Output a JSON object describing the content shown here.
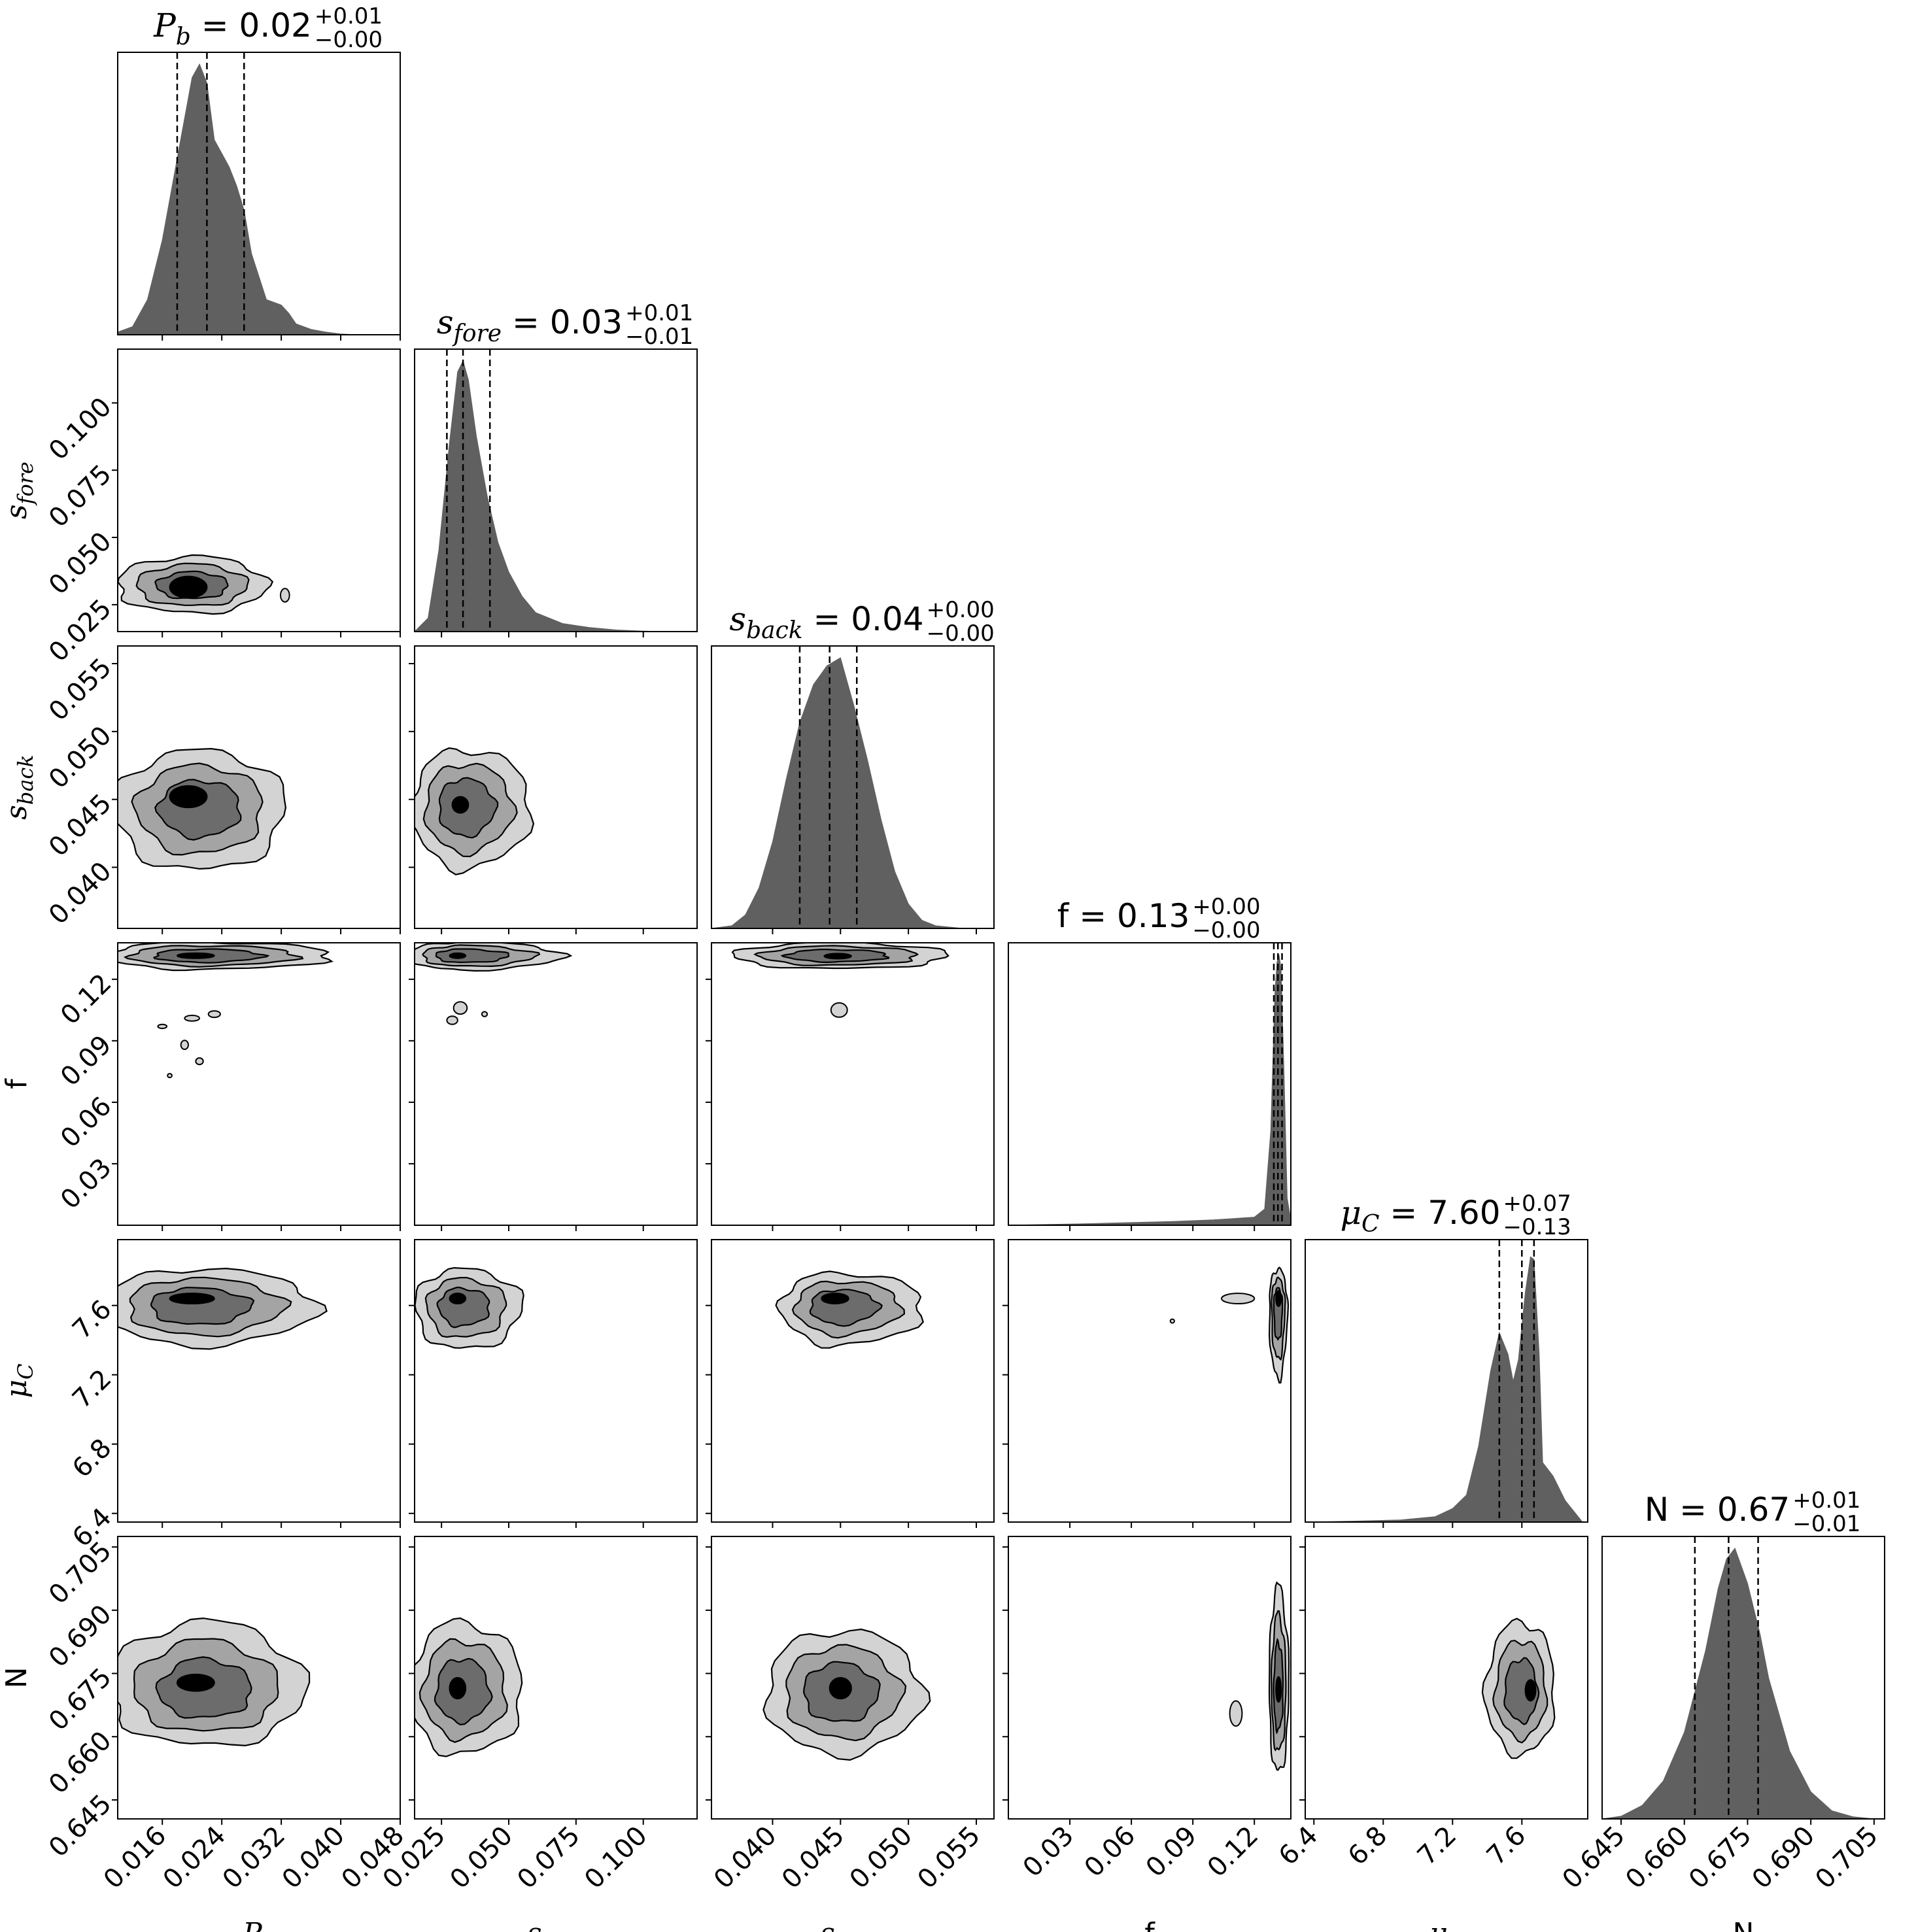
{
  "chart_data": {
    "type": "corner",
    "contour_fills": [
      "#d3d3d3",
      "#a4a4a4",
      "#6c6c6c",
      "#000000"
    ],
    "histogram_fill": "#606060",
    "parameters": [
      {
        "key": "P_b",
        "label_sym": "P",
        "label_sub": "b",
        "title_sym": "P",
        "title_sub": "b",
        "title_value": "0.02",
        "title_plus": "+0.01",
        "title_minus": "−0.00",
        "median": 0.022,
        "q16": 0.018,
        "q84": 0.027,
        "range": [
          0.01,
          0.048
        ],
        "ticks": [
          "0.016",
          "0.024",
          "0.032",
          "0.040",
          "0.048"
        ],
        "tick_values": [
          0.016,
          0.024,
          0.032,
          0.04,
          0.048
        ]
      },
      {
        "key": "s_fore",
        "label_sym": "s",
        "label_sub": "fore",
        "title_sym": "s",
        "title_sub": "fore",
        "title_value": "0.03",
        "title_plus": "+0.01",
        "title_minus": "−0.01",
        "median": 0.033,
        "q16": 0.027,
        "q84": 0.043,
        "range": [
          0.015,
          0.12
        ],
        "ticks": [
          "0.025",
          "0.050",
          "0.075",
          "0.100"
        ],
        "tick_values": [
          0.025,
          0.05,
          0.075,
          0.1
        ]
      },
      {
        "key": "s_back",
        "label_sym": "s",
        "label_sub": "back",
        "title_sym": "s",
        "title_sub": "back",
        "title_value": "0.04",
        "title_plus": "+0.00",
        "title_minus": "−0.00",
        "median": 0.0442,
        "q16": 0.042,
        "q84": 0.0462,
        "range": [
          0.0355,
          0.0563
        ],
        "ticks": [
          "0.040",
          "0.045",
          "0.050",
          "0.055"
        ],
        "tick_values": [
          0.04,
          0.045,
          0.05,
          0.055
        ]
      },
      {
        "key": "f",
        "label_sym": "f",
        "label_sub": "",
        "title_sym": "f",
        "title_sub": "",
        "title_value": "0.13",
        "title_plus": "+0.00",
        "title_minus": "−0.00",
        "median": 0.1315,
        "q16": 0.1295,
        "q84": 0.1335,
        "range": [
          0.0,
          0.1378
        ],
        "ticks": [
          "0.03",
          "0.06",
          "0.09",
          "0.12"
        ],
        "tick_values": [
          0.03,
          0.06,
          0.09,
          0.12
        ]
      },
      {
        "key": "mu_C",
        "label_sym": "μ",
        "label_sub": "C",
        "title_sym": "μ",
        "title_sub": "C",
        "title_value": "7.60",
        "title_plus": "+0.07",
        "title_minus": "−0.13",
        "median": 7.6,
        "q16": 7.47,
        "q84": 7.67,
        "range": [
          6.35,
          7.98
        ],
        "ticks": [
          "6.4",
          "6.8",
          "7.2",
          "7.6"
        ],
        "tick_values": [
          6.4,
          6.8,
          7.2,
          7.6
        ]
      },
      {
        "key": "N",
        "label_sym": "N",
        "label_sub": "",
        "title_sym": "N",
        "title_sub": "",
        "title_value": "0.67",
        "title_plus": "+0.01",
        "title_minus": "−0.01",
        "median": 0.6705,
        "q16": 0.6625,
        "q84": 0.6775,
        "range": [
          0.6405,
          0.7075
        ],
        "ticks": [
          "0.645",
          "0.660",
          "0.675",
          "0.690",
          "0.705"
        ],
        "tick_values": [
          0.645,
          0.66,
          0.675,
          0.69,
          0.705
        ]
      }
    ],
    "marginals": [
      {
        "param": 0,
        "x": [
          0.01,
          0.012,
          0.014,
          0.016,
          0.018,
          0.02,
          0.021,
          0.022,
          0.023,
          0.025,
          0.026,
          0.027,
          0.028,
          0.03,
          0.031,
          0.032,
          0.033,
          0.034,
          0.036,
          0.038,
          0.04,
          0.042
        ],
        "y": [
          0.01,
          0.03,
          0.13,
          0.35,
          0.65,
          0.95,
          1.0,
          0.93,
          0.72,
          0.62,
          0.55,
          0.46,
          0.3,
          0.13,
          0.12,
          0.11,
          0.08,
          0.04,
          0.02,
          0.01,
          0.003,
          0.0
        ]
      },
      {
        "param": 1,
        "x": [
          0.015,
          0.02,
          0.024,
          0.028,
          0.031,
          0.033,
          0.035,
          0.038,
          0.042,
          0.046,
          0.05,
          0.055,
          0.06,
          0.07,
          0.08,
          0.09,
          0.1,
          0.108
        ],
        "y": [
          0.0,
          0.05,
          0.3,
          0.7,
          0.96,
          1.0,
          0.93,
          0.72,
          0.5,
          0.33,
          0.22,
          0.13,
          0.07,
          0.03,
          0.015,
          0.006,
          0.002,
          0.0
        ]
      },
      {
        "param": 2,
        "x": [
          0.0355,
          0.037,
          0.038,
          0.039,
          0.04,
          0.041,
          0.042,
          0.043,
          0.044,
          0.045,
          0.046,
          0.047,
          0.048,
          0.049,
          0.05,
          0.051,
          0.052,
          0.054
        ],
        "y": [
          0.0,
          0.01,
          0.05,
          0.15,
          0.32,
          0.55,
          0.76,
          0.9,
          0.97,
          1.0,
          0.82,
          0.62,
          0.4,
          0.21,
          0.09,
          0.03,
          0.01,
          0.0
        ]
      },
      {
        "param": 3,
        "x": [
          0.0,
          0.02,
          0.04,
          0.06,
          0.08,
          0.1,
          0.11,
          0.12,
          0.125,
          0.128,
          0.13,
          0.131,
          0.132,
          0.133,
          0.1345,
          0.136,
          0.1378
        ],
        "y": [
          0.0,
          0.003,
          0.006,
          0.01,
          0.014,
          0.02,
          0.025,
          0.03,
          0.06,
          0.35,
          0.85,
          0.97,
          1.0,
          0.95,
          0.55,
          0.1,
          0.02
        ]
      },
      {
        "param": 4,
        "x": [
          6.35,
          6.6,
          6.9,
          7.1,
          7.2,
          7.28,
          7.35,
          7.42,
          7.47,
          7.52,
          7.55,
          7.58,
          7.62,
          7.65,
          7.67,
          7.7,
          7.72,
          7.78,
          7.85,
          7.95
        ],
        "y": [
          0.0,
          0.003,
          0.008,
          0.02,
          0.05,
          0.1,
          0.28,
          0.56,
          0.7,
          0.62,
          0.52,
          0.6,
          0.85,
          0.98,
          0.97,
          0.62,
          0.22,
          0.17,
          0.08,
          0.0
        ]
      },
      {
        "param": 5,
        "x": [
          0.6405,
          0.645,
          0.65,
          0.655,
          0.66,
          0.665,
          0.668,
          0.67,
          0.672,
          0.675,
          0.678,
          0.68,
          0.685,
          0.69,
          0.695,
          0.7,
          0.705
        ],
        "y": [
          0.0,
          0.01,
          0.05,
          0.14,
          0.32,
          0.62,
          0.85,
          0.96,
          1.0,
          0.87,
          0.68,
          0.52,
          0.25,
          0.1,
          0.03,
          0.008,
          0.0
        ]
      }
    ],
    "joints": [
      {
        "row": 1,
        "col": 0,
        "center": [
          0.02,
          0.032
        ],
        "sigma": [
          [
            0.0048,
            0.0048
          ],
          [
            0.0048,
            0.0052
          ]
        ],
        "mode": [
          0.0195,
          0.0315
        ],
        "mode_w": [
          0.0025,
          0.004
        ],
        "islands": [
          [
            0.0325,
            0.0285,
            0.0006,
            0.0025
          ]
        ]
      },
      {
        "row": 2,
        "col": 0,
        "center": [
          0.021,
          0.0444
        ],
        "sigma": [
          [
            0.0055,
            0.0055
          ],
          [
            0.0022,
            0.002
          ]
        ],
        "mode": [
          0.0195,
          0.0452
        ],
        "mode_w": [
          0.0025,
          0.0008
        ],
        "islands": []
      },
      {
        "row": 2,
        "col": 1,
        "center": [
          0.033,
          0.0445
        ],
        "sigma": [
          [
            0.009,
            0.012
          ],
          [
            0.0022,
            0.002
          ]
        ],
        "mode": [
          0.032,
          0.0446
        ],
        "mode_w": [
          0.003,
          0.0006
        ],
        "islands": []
      },
      {
        "row": 3,
        "col": 0,
        "center": [
          0.021,
          0.1315
        ],
        "sigma": [
          [
            0.006,
            0.0085
          ],
          [
            0.0032,
            0.0032
          ]
        ],
        "mode": [
          0.0205,
          0.1315
        ],
        "mode_w": [
          0.0025,
          0.0012
        ],
        "islands": [
          [
            0.02,
            0.101,
            0.001,
            0.0014
          ],
          [
            0.023,
            0.103,
            0.0008,
            0.0016
          ],
          [
            0.016,
            0.097,
            0.0006,
            0.001
          ],
          [
            0.019,
            0.088,
            0.0005,
            0.0022
          ],
          [
            0.021,
            0.08,
            0.0005,
            0.0016
          ],
          [
            0.017,
            0.073,
            0.0003,
            0.0009
          ]
        ]
      },
      {
        "row": 3,
        "col": 1,
        "center": [
          0.032,
          0.1315
        ],
        "sigma": [
          [
            0.009,
            0.018
          ],
          [
            0.0033,
            0.0032
          ]
        ],
        "mode": [
          0.031,
          0.1315
        ],
        "mode_w": [
          0.003,
          0.0011
        ],
        "islands": [
          [
            0.032,
            0.106,
            0.0025,
            0.003
          ],
          [
            0.029,
            0.1,
            0.002,
            0.002
          ],
          [
            0.041,
            0.103,
            0.001,
            0.0012
          ]
        ]
      },
      {
        "row": 3,
        "col": 2,
        "center": [
          0.0445,
          0.1315
        ],
        "sigma": [
          [
            0.0035,
            0.004
          ],
          [
            0.003,
            0.003
          ]
        ],
        "mode": [
          0.0448,
          0.1313
        ],
        "mode_w": [
          0.001,
          0.001
        ],
        "islands": [
          [
            0.0449,
            0.105,
            0.0006,
            0.0035
          ]
        ]
      },
      {
        "row": 4,
        "col": 0,
        "center": [
          0.02,
          7.6
        ],
        "sigma": [
          [
            0.0055,
            0.008
          ],
          [
            0.11,
            0.1
          ]
        ],
        "mode": [
          0.02,
          7.64
        ],
        "mode_w": [
          0.003,
          0.03
        ],
        "islands": []
      },
      {
        "row": 4,
        "col": 1,
        "center": [
          0.032,
          7.6
        ],
        "sigma": [
          [
            0.008,
            0.011
          ],
          [
            0.12,
            0.1
          ]
        ],
        "mode": [
          0.031,
          7.64
        ],
        "mode_w": [
          0.003,
          0.03
        ],
        "islands": []
      },
      {
        "row": 4,
        "col": 2,
        "center": [
          0.0448,
          7.6
        ],
        "sigma": [
          [
            0.002,
            0.003
          ],
          [
            0.11,
            0.09
          ]
        ],
        "mode": [
          0.0446,
          7.64
        ],
        "mode_w": [
          0.001,
          0.03
        ],
        "islands": []
      },
      {
        "row": 4,
        "col": 3,
        "center": [
          0.1315,
          7.6
        ],
        "sigma": [
          [
            0.002,
            0.0022
          ],
          [
            0.2,
            0.1
          ]
        ],
        "mode": [
          0.1318,
          7.64
        ],
        "mode_w": [
          0.0007,
          0.045
        ],
        "islands": [
          [
            0.112,
            7.64,
            0.008,
            0.03
          ],
          [
            0.08,
            7.51,
            0.001,
            0.006
          ]
        ]
      },
      {
        "row": 5,
        "col": 0,
        "center": [
          0.0215,
          0.6705
        ],
        "sigma": [
          [
            0.006,
            0.0065
          ],
          [
            0.006,
            0.008
          ]
        ],
        "mode": [
          0.0205,
          0.6728
        ],
        "mode_w": [
          0.0025,
          0.002
        ],
        "islands": []
      },
      {
        "row": 5,
        "col": 1,
        "center": [
          0.032,
          0.6705
        ],
        "sigma": [
          [
            0.009,
            0.011
          ],
          [
            0.007,
            0.008
          ]
        ],
        "mode": [
          0.031,
          0.6715
        ],
        "mode_w": [
          0.003,
          0.0025
        ],
        "islands": []
      },
      {
        "row": 5,
        "col": 2,
        "center": [
          0.0448,
          0.6705
        ],
        "sigma": [
          [
            0.0025,
            0.003
          ],
          [
            0.007,
            0.007
          ]
        ],
        "mode": [
          0.045,
          0.6715
        ],
        "mode_w": [
          0.0008,
          0.0025
        ],
        "islands": []
      },
      {
        "row": 5,
        "col": 3,
        "center": [
          0.1315,
          0.6705
        ],
        "sigma": [
          [
            0.002,
            0.0025
          ],
          [
            0.009,
            0.012
          ]
        ],
        "mode": [
          0.1318,
          0.6712
        ],
        "mode_w": [
          0.0006,
          0.003
        ],
        "islands": [
          [
            0.111,
            0.6655,
            0.003,
            0.003
          ]
        ]
      },
      {
        "row": 5,
        "col": 4,
        "center": [
          7.6,
          0.6705
        ],
        "sigma": [
          [
            0.1,
            0.09
          ],
          [
            0.007,
            0.008
          ]
        ],
        "mode": [
          7.65,
          0.671
        ],
        "mode_w": [
          0.03,
          0.0025
        ],
        "islands": []
      }
    ]
  }
}
